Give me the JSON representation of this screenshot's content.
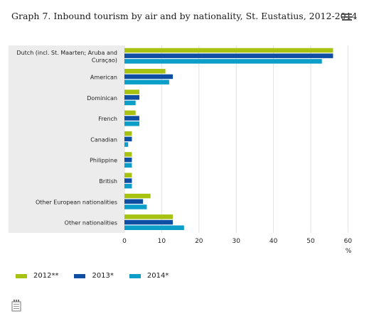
{
  "title": "Graph 7. Inbound tourism by air and by nationality, St. Eustatius, 2012-2014",
  "menu_icon": "hamburger-menu-icon",
  "logo_icon": "cbs-logo-icon",
  "colors": {
    "2012**": "#a8c211",
    "2013*": "#0e4ea3",
    "2014*": "#0a9ec9"
  },
  "chart_data": {
    "type": "bar",
    "orientation": "horizontal",
    "title": "Graph 7. Inbound tourism by air and by nationality, St. Eustatius, 2012-2014",
    "xlabel": "%",
    "xlim": [
      0,
      60
    ],
    "xticks": [
      "0",
      "10",
      "20",
      "30",
      "40",
      "50",
      "60"
    ],
    "grid": true,
    "legend_position": "bottom-left",
    "categories": [
      [
        "Dutch (incl. St. Maarten; Aruba and",
        "Curaçao)"
      ],
      [
        "American"
      ],
      [
        "Dominican"
      ],
      [
        "French"
      ],
      [
        "Canadian"
      ],
      [
        "Philippine"
      ],
      [
        "British"
      ],
      [
        "Other European nationalities"
      ],
      [
        "Other nationalities"
      ]
    ],
    "series": [
      {
        "name": "2012**",
        "values": [
          56,
          11,
          4,
          3,
          2,
          2,
          2,
          7,
          13
        ]
      },
      {
        "name": "2013*",
        "values": [
          56,
          13,
          4,
          4,
          2,
          2,
          2,
          5,
          13
        ]
      },
      {
        "name": "2014*",
        "values": [
          53,
          12,
          3,
          4,
          1,
          2,
          2,
          6,
          16
        ]
      }
    ]
  }
}
